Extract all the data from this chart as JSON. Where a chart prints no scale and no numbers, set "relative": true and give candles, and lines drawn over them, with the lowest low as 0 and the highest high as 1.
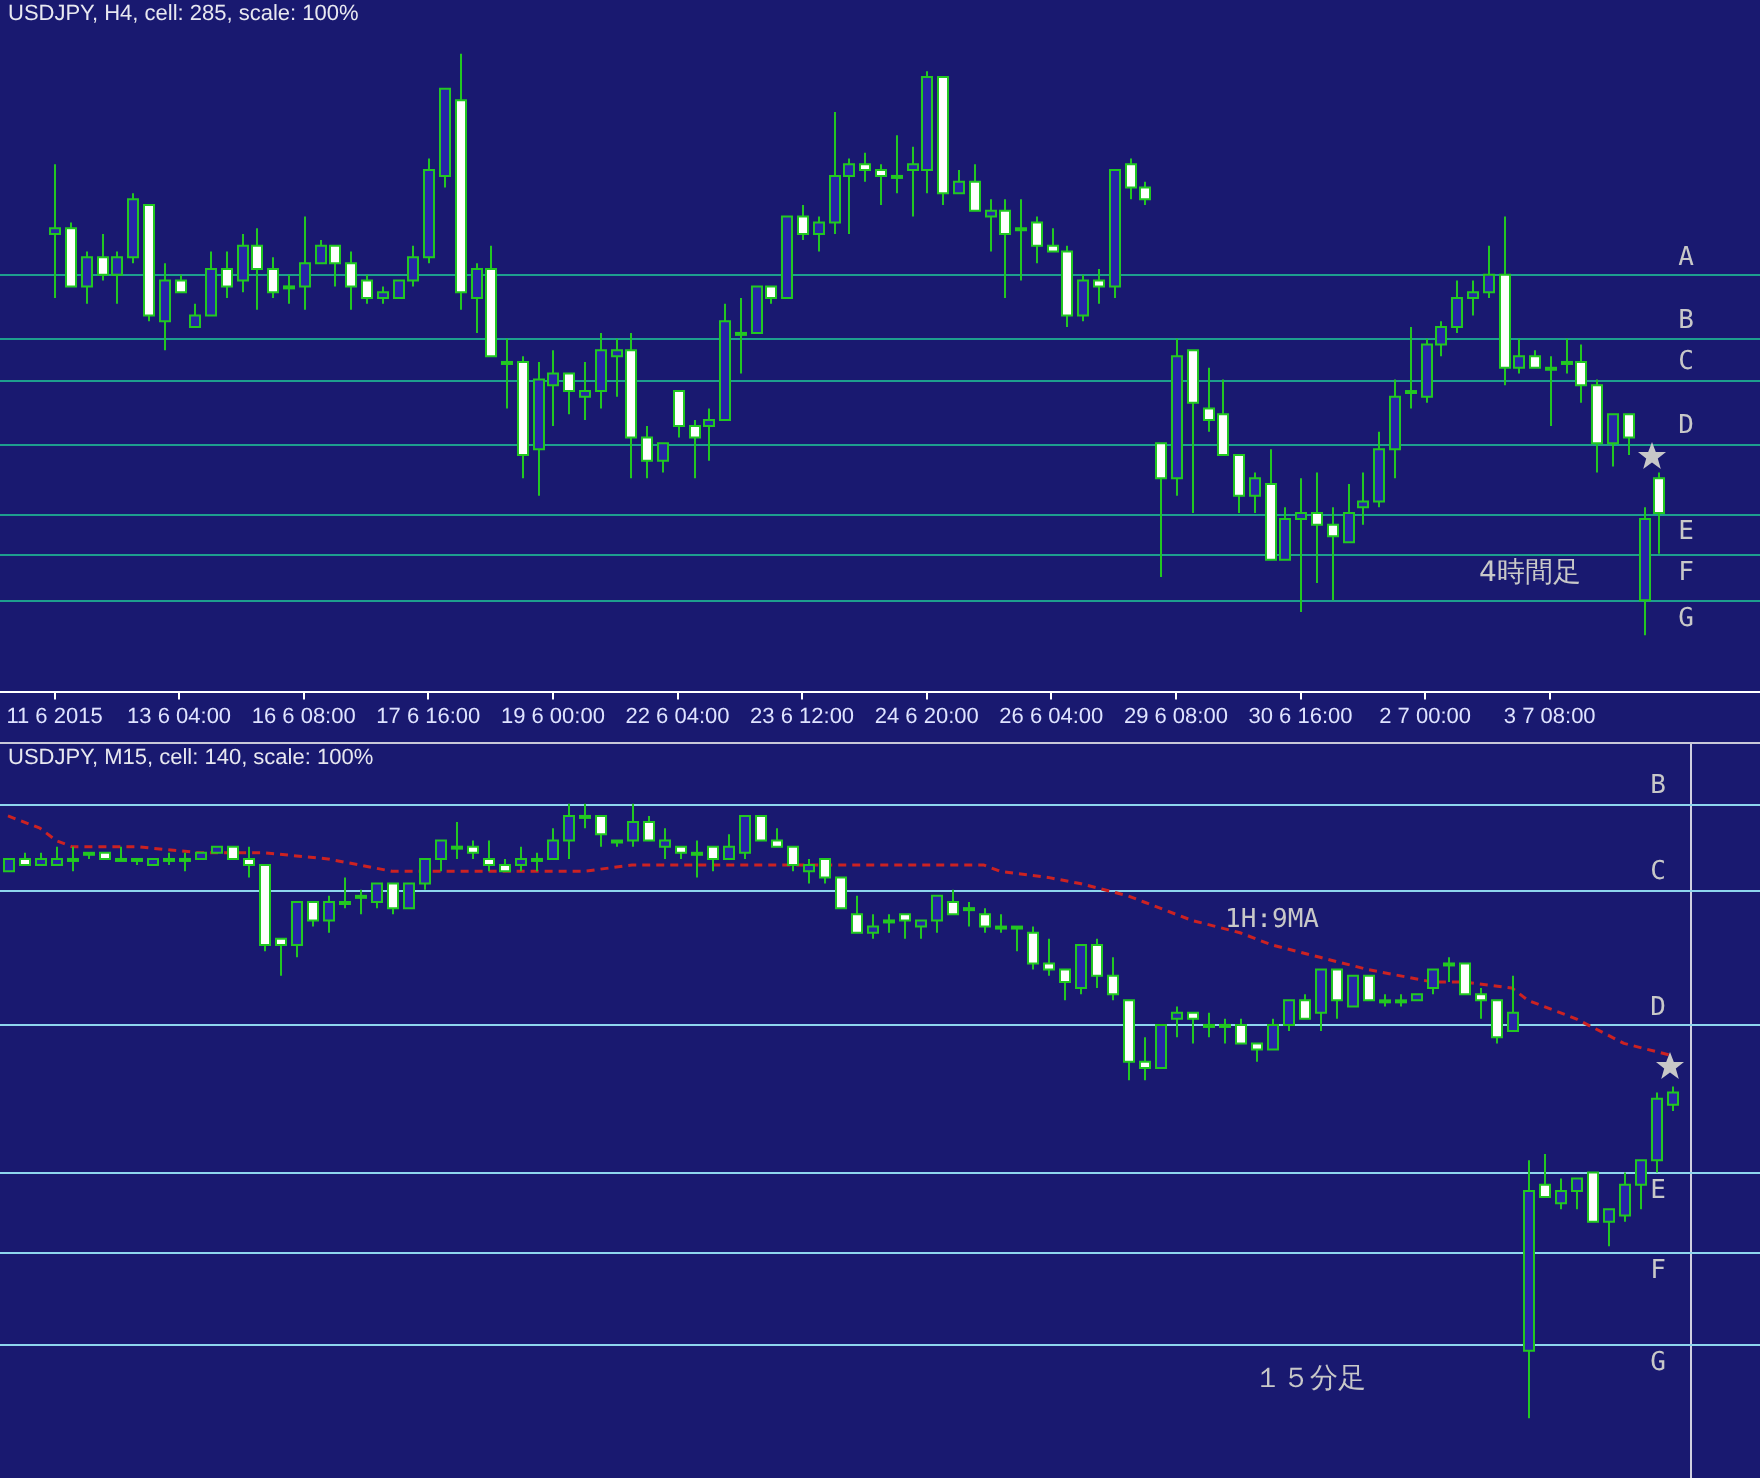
{
  "chart_data": [
    {
      "type": "candlestick",
      "title": "USDJPY, H4, cell: 285, scale: 100%",
      "relative": true,
      "tick_labels": "x",
      "colors": [
        "#2626a6",
        "#ffffff",
        "#2626a6",
        "#ffffff",
        "#2626a6",
        "#2626a6",
        "#ffffff",
        "#2626a6",
        "#ffffff",
        "#2626a6",
        "#2626a6",
        "#ffffff",
        "#2626a6",
        "#ffffff",
        "#ffffff",
        "#2626a6",
        "#2626a6",
        "#2626a6",
        "#ffffff",
        "#ffffff",
        "#ffffff",
        "#2626a6",
        "#2626a6",
        "#2626a6",
        "#2626a6",
        "#2626a6",
        "#ffffff",
        "#2626a6",
        "#ffffff",
        "#2626a6",
        "#ffffff",
        "#2626a6",
        "#2626a6",
        "#ffffff",
        "#2626a6",
        "#2626a6",
        "#2626a6",
        "#ffffff",
        "#ffffff",
        "#2626a6",
        "#ffffff",
        "#ffffff",
        "#2626a6",
        "#2626a6",
        "#2626a6",
        "#2626a6",
        "#ffffff",
        "#2626a6",
        "#ffffff",
        "#2626a6",
        "#2626a6",
        "#2626a6",
        "#ffffff",
        "#ffffff",
        "#2626a6",
        "#2626a6",
        "#2626a6",
        "#ffffff",
        "#2626a6",
        "#ffffff",
        "#2626a6",
        "#ffffff",
        "#2626a6",
        "#ffffff",
        "#ffffff",
        "#ffffff",
        "#2626a6",
        "#ffffff",
        "#2626a6",
        "#ffffff",
        "#ffffff",
        "#ffffff",
        "#2626a6",
        "#ffffff",
        "#ffffff",
        "#ffffff",
        "#ffffff",
        "#2626a6",
        "#ffffff",
        "#2626a6",
        "#2626a6",
        "#ffffff",
        "#ffffff",
        "#2626a6",
        "#2626a6",
        "#2626a6",
        "#2626a6",
        "#2626a6",
        "#2626a6",
        "#2626a6",
        "#2626a6",
        "#2626a6",
        "#2626a6",
        "#ffffff",
        "#2626a6",
        "#ffffff",
        "#2626a6",
        "#2626a6",
        "#ffffff",
        "#ffffff",
        "#2626a6",
        "#ffffff",
        "#2626a6",
        "#ffffff"
      ],
      "categories": [
        "11 6 2015",
        null,
        null,
        null,
        null,
        null,
        null,
        null,
        "13 6 04:00",
        null,
        null,
        null,
        null,
        null,
        null,
        null,
        "16 6 08:00",
        null,
        null,
        null,
        null,
        null,
        null,
        null,
        "17 6 16:00",
        null,
        null,
        null,
        null,
        null,
        null,
        null,
        "19 6 00:00",
        null,
        null,
        null,
        null,
        null,
        null,
        null,
        "22 6 04:00",
        null,
        null,
        null,
        null,
        null,
        null,
        null,
        "23 6 12:00",
        null,
        null,
        null,
        null,
        null,
        null,
        null,
        "24 6 20:00",
        null,
        null,
        null,
        null,
        null,
        null,
        null,
        "26 6 04:00",
        null,
        null,
        null,
        null,
        null,
        null,
        null,
        "29 6 08:00",
        null,
        null,
        null,
        null,
        null,
        null,
        null,
        "30 6 16:00",
        null,
        null,
        null,
        null,
        null,
        null,
        null,
        "2 7 00:00",
        null,
        null,
        null,
        null,
        null,
        null,
        null,
        "3 7 08:00",
        null,
        null,
        null,
        null,
        null,
        null,
        null
      ],
      "ohlc": [
        [
          0.69,
          0.81,
          0.58,
          0.7
        ],
        [
          0.7,
          0.71,
          0.6,
          0.6
        ],
        [
          0.6,
          0.66,
          0.57,
          0.65
        ],
        [
          0.65,
          0.69,
          0.61,
          0.62
        ],
        [
          0.62,
          0.66,
          0.57,
          0.65
        ],
        [
          0.65,
          0.76,
          0.64,
          0.75
        ],
        [
          0.74,
          0.74,
          0.54,
          0.55
        ],
        [
          0.54,
          0.64,
          0.49,
          0.61
        ],
        [
          0.61,
          0.62,
          0.59,
          0.59
        ],
        [
          0.53,
          0.57,
          0.53,
          0.55
        ],
        [
          0.55,
          0.66,
          0.55,
          0.63
        ],
        [
          0.63,
          0.66,
          0.58,
          0.6
        ],
        [
          0.61,
          0.69,
          0.59,
          0.67
        ],
        [
          0.67,
          0.7,
          0.56,
          0.63
        ],
        [
          0.63,
          0.65,
          0.58,
          0.59
        ],
        [
          0.6,
          0.62,
          0.57,
          0.6
        ],
        [
          0.6,
          0.72,
          0.56,
          0.64
        ],
        [
          0.64,
          0.68,
          0.64,
          0.67
        ],
        [
          0.67,
          0.67,
          0.6,
          0.64
        ],
        [
          0.64,
          0.66,
          0.56,
          0.6
        ],
        [
          0.61,
          0.62,
          0.57,
          0.58
        ],
        [
          0.58,
          0.6,
          0.57,
          0.59
        ],
        [
          0.58,
          0.61,
          0.58,
          0.61
        ],
        [
          0.61,
          0.67,
          0.6,
          0.65
        ],
        [
          0.65,
          0.82,
          0.64,
          0.8
        ],
        [
          0.79,
          0.94,
          0.77,
          0.94
        ],
        [
          0.92,
          1,
          0.56,
          0.59
        ],
        [
          0.58,
          0.64,
          0.52,
          0.63
        ],
        [
          0.63,
          0.67,
          0.48,
          0.48
        ],
        [
          0.47,
          0.51,
          0.39,
          0.47
        ],
        [
          0.47,
          0.48,
          0.27,
          0.31
        ],
        [
          0.32,
          0.47,
          0.24,
          0.44
        ],
        [
          0.43,
          0.49,
          0.36,
          0.45
        ],
        [
          0.45,
          0.45,
          0.38,
          0.42
        ],
        [
          0.41,
          0.47,
          0.37,
          0.42
        ],
        [
          0.42,
          0.52,
          0.39,
          0.49
        ],
        [
          0.48,
          0.51,
          0.41,
          0.49
        ],
        [
          0.49,
          0.52,
          0.27,
          0.34
        ],
        [
          0.34,
          0.36,
          0.27,
          0.3
        ],
        [
          0.3,
          0.33,
          0.28,
          0.33
        ],
        [
          0.42,
          0.42,
          0.34,
          0.36
        ],
        [
          0.36,
          0.37,
          0.27,
          0.34
        ],
        [
          0.36,
          0.39,
          0.3,
          0.37
        ],
        [
          0.37,
          0.57,
          0.37,
          0.54
        ],
        [
          0.52,
          0.58,
          0.45,
          0.52
        ],
        [
          0.52,
          0.6,
          0.52,
          0.6
        ],
        [
          0.6,
          0.6,
          0.57,
          0.58
        ],
        [
          0.58,
          0.72,
          0.58,
          0.72
        ],
        [
          0.72,
          0.74,
          0.68,
          0.69
        ],
        [
          0.69,
          0.72,
          0.66,
          0.71
        ],
        [
          0.71,
          0.9,
          0.69,
          0.79
        ],
        [
          0.79,
          0.82,
          0.69,
          0.81
        ],
        [
          0.81,
          0.83,
          0.78,
          0.8
        ],
        [
          0.8,
          0.81,
          0.74,
          0.79
        ],
        [
          0.79,
          0.86,
          0.76,
          0.79
        ],
        [
          0.8,
          0.84,
          0.72,
          0.81
        ],
        [
          0.8,
          0.97,
          0.76,
          0.96
        ],
        [
          0.96,
          0.96,
          0.74,
          0.76
        ],
        [
          0.76,
          0.8,
          0.76,
          0.78
        ],
        [
          0.78,
          0.81,
          0.73,
          0.73
        ],
        [
          0.72,
          0.75,
          0.66,
          0.73
        ],
        [
          0.73,
          0.75,
          0.58,
          0.69
        ],
        [
          0.7,
          0.75,
          0.61,
          0.7
        ],
        [
          0.71,
          0.72,
          0.64,
          0.67
        ],
        [
          0.67,
          0.7,
          0.66,
          0.66
        ],
        [
          0.66,
          0.67,
          0.53,
          0.55
        ],
        [
          0.55,
          0.62,
          0.54,
          0.61
        ],
        [
          0.61,
          0.63,
          0.57,
          0.6
        ],
        [
          0.6,
          0.8,
          0.58,
          0.8
        ],
        [
          0.81,
          0.82,
          0.75,
          0.77
        ],
        [
          0.77,
          0.78,
          0.74,
          0.75
        ],
        [
          0.33,
          0.33,
          0.1,
          0.27
        ],
        [
          0.27,
          0.51,
          0.24,
          0.48
        ],
        [
          0.49,
          0.49,
          0.21,
          0.4
        ],
        [
          0.39,
          0.46,
          0.35,
          0.37
        ],
        [
          0.38,
          0.44,
          0.31,
          0.31
        ],
        [
          0.31,
          0.31,
          0.21,
          0.24
        ],
        [
          0.24,
          0.28,
          0.21,
          0.27
        ],
        [
          0.26,
          0.32,
          0.13,
          0.13
        ],
        [
          0.13,
          0.22,
          0.13,
          0.2
        ],
        [
          0.2,
          0.27,
          0.04,
          0.21
        ],
        [
          0.21,
          0.28,
          0.09,
          0.19
        ],
        [
          0.19,
          0.22,
          0.06,
          0.17
        ],
        [
          0.16,
          0.26,
          0.16,
          0.21
        ],
        [
          0.22,
          0.28,
          0.19,
          0.23
        ],
        [
          0.23,
          0.35,
          0.22,
          0.32
        ],
        [
          0.32,
          0.44,
          0.27,
          0.41
        ],
        [
          0.42,
          0.53,
          0.39,
          0.42
        ],
        [
          0.41,
          0.51,
          0.4,
          0.5
        ],
        [
          0.5,
          0.54,
          0.48,
          0.53
        ],
        [
          0.53,
          0.61,
          0.52,
          0.58
        ],
        [
          0.58,
          0.61,
          0.55,
          0.59
        ],
        [
          0.59,
          0.67,
          0.58,
          0.62
        ],
        [
          0.62,
          0.72,
          0.43,
          0.46
        ],
        [
          0.46,
          0.51,
          0.45,
          0.48
        ],
        [
          0.48,
          0.49,
          0.46,
          0.46
        ],
        [
          0.46,
          0.48,
          0.36,
          0.46
        ],
        [
          0.47,
          0.51,
          0.45,
          0.47
        ],
        [
          0.47,
          0.5,
          0.4,
          0.43
        ],
        [
          0.43,
          0.44,
          0.28,
          0.33
        ],
        [
          0.33,
          0.38,
          0.29,
          0.38
        ],
        [
          0.38,
          0.38,
          0.31,
          0.34
        ],
        [
          0.06,
          0.22,
          0,
          0.2
        ],
        [
          0.27,
          0.28,
          0.14,
          0.21
        ]
      ],
      "ref_lines": [
        {
          "axis": "y",
          "value": 0.62,
          "label": "A",
          "color": "#1e9e8e"
        },
        {
          "axis": "y",
          "value": 0.51,
          "label": "B",
          "color": "#1e9e8e"
        },
        {
          "axis": "y",
          "value": 0.44,
          "label": "C",
          "color": "#1e9e8e"
        },
        {
          "axis": "y",
          "value": 0.33,
          "label": "D",
          "color": "#1e9e8e"
        },
        {
          "axis": "y",
          "value": 0.21,
          "label": "E",
          "color": "#1e9e8e"
        },
        {
          "axis": "y",
          "value": 0.14,
          "label": "F",
          "color": "#1e9e8e"
        },
        {
          "axis": "y",
          "value": 0.06,
          "label": "G",
          "color": "#1e9e8e"
        }
      ],
      "annotations": [
        "4時間足"
      ]
    },
    {
      "type": "candlestick",
      "title": "USDJPY, M15, cell: 140, scale: 100%",
      "relative": true,
      "tick_labels": false,
      "colors": [
        "#2626a6",
        "#ffffff",
        "#2626a6",
        "#2626a6",
        "#2626a6",
        "#2626a6",
        "#ffffff",
        "#2626a6",
        "#ffffff",
        "#2626a6",
        "#ffffff",
        "#2626a6",
        "#2626a6",
        "#2626a6",
        "#ffffff",
        "#ffffff",
        "#ffffff",
        "#ffffff",
        "#2626a6",
        "#ffffff",
        "#2626a6",
        "#2626a6",
        "#2626a6",
        "#2626a6",
        "#ffffff",
        "#2626a6",
        "#2626a6",
        "#2626a6",
        "#2626a6",
        "#ffffff",
        "#ffffff",
        "#ffffff",
        "#2626a6",
        "#2626a6",
        "#2626a6",
        "#2626a6",
        "#ffffff",
        "#ffffff",
        "#ffffff",
        "#2626a6",
        "#ffffff",
        "#2626a6",
        "#ffffff",
        "#2626a6",
        "#ffffff",
        "#2626a6",
        "#2626a6",
        "#ffffff",
        "#ffffff",
        "#ffffff",
        "#2626a6",
        "#ffffff",
        "#ffffff",
        "#ffffff",
        "#2626a6",
        "#2626a6",
        "#ffffff",
        "#2626a6",
        "#2626a6",
        "#ffffff",
        "#2626a6",
        "#ffffff",
        "#2626a6",
        "#2626a6",
        "#ffffff",
        "#ffffff",
        "#ffffff",
        "#2626a6",
        "#ffffff",
        "#ffffff",
        "#ffffff",
        "#ffffff",
        "#2626a6",
        "#2626a6",
        "#ffffff",
        "#2626a6",
        "#2626a6",
        "#ffffff",
        "#ffffff",
        "#2626a6",
        "#2626a6",
        "#ffffff",
        "#2626a6",
        "#ffffff",
        "#2626a6",
        "#ffffff",
        "#ffffff",
        "#2626a6",
        "#2626a6",
        "#2626a6",
        "#2626a6",
        "#ffffff",
        "#ffffff",
        "#ffffff",
        "#2626a6",
        "#2626a6",
        "#ffffff",
        "#2626a6",
        "#2626a6",
        "#ffffff",
        "#2626a6",
        "#2626a6",
        "#2626a6",
        "#2626a6",
        "#2626a6"
      ],
      "categories": [
        null,
        null,
        null,
        null,
        null,
        null,
        null,
        null,
        null,
        null,
        null,
        null,
        null,
        null,
        null,
        null,
        null,
        null,
        null,
        null,
        null,
        null,
        null,
        null,
        null,
        null,
        null,
        null,
        null,
        null,
        null,
        null,
        null,
        null,
        null,
        null,
        null,
        null,
        null,
        null,
        null,
        null,
        null,
        null,
        null,
        null,
        null,
        null,
        null,
        null,
        null,
        null,
        null,
        null,
        null,
        null,
        null,
        null,
        null,
        null,
        null,
        null,
        null,
        null,
        null,
        null,
        null,
        null,
        null,
        null,
        null,
        null,
        null,
        null,
        null,
        null,
        null,
        null,
        null,
        null,
        null,
        null,
        null,
        null,
        null,
        null,
        null,
        null,
        null,
        null,
        null,
        null,
        null,
        null,
        null,
        null,
        null,
        null,
        null,
        null,
        null,
        null,
        null,
        null,
        null
      ],
      "ohlc": [
        [
          0.89,
          0.91,
          0.89,
          0.91
        ],
        [
          0.91,
          0.92,
          0.9,
          0.9
        ],
        [
          0.9,
          0.92,
          0.9,
          0.91
        ],
        [
          0.9,
          0.93,
          0.9,
          0.91
        ],
        [
          0.91,
          0.93,
          0.89,
          0.91
        ],
        [
          0.92,
          0.92,
          0.91,
          0.92
        ],
        [
          0.92,
          0.92,
          0.91,
          0.91
        ],
        [
          0.91,
          0.93,
          0.91,
          0.91
        ],
        [
          0.91,
          0.91,
          0.9,
          0.91
        ],
        [
          0.9,
          0.91,
          0.9,
          0.91
        ],
        [
          0.91,
          0.92,
          0.9,
          0.91
        ],
        [
          0.91,
          0.92,
          0.89,
          0.91
        ],
        [
          0.91,
          0.92,
          0.91,
          0.92
        ],
        [
          0.92,
          0.93,
          0.92,
          0.93
        ],
        [
          0.93,
          0.93,
          0.91,
          0.91
        ],
        [
          0.91,
          0.93,
          0.88,
          0.9
        ],
        [
          0.9,
          0.9,
          0.76,
          0.77
        ],
        [
          0.78,
          0.78,
          0.72,
          0.77
        ],
        [
          0.77,
          0.84,
          0.75,
          0.84
        ],
        [
          0.84,
          0.84,
          0.8,
          0.81
        ],
        [
          0.81,
          0.85,
          0.79,
          0.84
        ],
        [
          0.84,
          0.88,
          0.83,
          0.84
        ],
        [
          0.85,
          0.86,
          0.82,
          0.85
        ],
        [
          0.84,
          0.87,
          0.83,
          0.87
        ],
        [
          0.87,
          0.87,
          0.82,
          0.83
        ],
        [
          0.83,
          0.87,
          0.83,
          0.87
        ],
        [
          0.87,
          0.91,
          0.86,
          0.91
        ],
        [
          0.91,
          0.94,
          0.89,
          0.94
        ],
        [
          0.93,
          0.97,
          0.91,
          0.93
        ],
        [
          0.93,
          0.94,
          0.91,
          0.92
        ],
        [
          0.91,
          0.94,
          0.89,
          0.9
        ],
        [
          0.9,
          0.91,
          0.89,
          0.89
        ],
        [
          0.9,
          0.93,
          0.89,
          0.91
        ],
        [
          0.91,
          0.92,
          0.89,
          0.91
        ],
        [
          0.91,
          0.96,
          0.91,
          0.94
        ],
        [
          0.94,
          1,
          0.91,
          0.98
        ],
        [
          0.98,
          1,
          0.96,
          0.98
        ],
        [
          0.98,
          0.98,
          0.93,
          0.95
        ],
        [
          0.94,
          0.94,
          0.93,
          0.94
        ],
        [
          0.94,
          1,
          0.93,
          0.97
        ],
        [
          0.97,
          0.98,
          0.94,
          0.94
        ],
        [
          0.93,
          0.96,
          0.91,
          0.94
        ],
        [
          0.93,
          0.93,
          0.91,
          0.92
        ],
        [
          0.92,
          0.94,
          0.88,
          0.92
        ],
        [
          0.93,
          0.93,
          0.89,
          0.91
        ],
        [
          0.91,
          0.95,
          0.91,
          0.93
        ],
        [
          0.92,
          0.98,
          0.91,
          0.98
        ],
        [
          0.98,
          0.98,
          0.94,
          0.94
        ],
        [
          0.94,
          0.96,
          0.93,
          0.93
        ],
        [
          0.93,
          0.93,
          0.89,
          0.9
        ],
        [
          0.89,
          0.91,
          0.87,
          0.9
        ],
        [
          0.91,
          0.91,
          0.87,
          0.88
        ],
        [
          0.88,
          0.88,
          0.83,
          0.83
        ],
        [
          0.82,
          0.85,
          0.79,
          0.79
        ],
        [
          0.79,
          0.82,
          0.78,
          0.8
        ],
        [
          0.81,
          0.82,
          0.79,
          0.81
        ],
        [
          0.82,
          0.82,
          0.78,
          0.81
        ],
        [
          0.8,
          0.81,
          0.78,
          0.81
        ],
        [
          0.81,
          0.85,
          0.79,
          0.85
        ],
        [
          0.84,
          0.86,
          0.82,
          0.82
        ],
        [
          0.83,
          0.84,
          0.8,
          0.83
        ],
        [
          0.82,
          0.83,
          0.79,
          0.8
        ],
        [
          0.8,
          0.82,
          0.79,
          0.8
        ],
        [
          0.8,
          0.8,
          0.76,
          0.8
        ],
        [
          0.79,
          0.8,
          0.73,
          0.74
        ],
        [
          0.74,
          0.78,
          0.72,
          0.73
        ],
        [
          0.73,
          0.73,
          0.68,
          0.71
        ],
        [
          0.7,
          0.77,
          0.69,
          0.77
        ],
        [
          0.77,
          0.78,
          0.7,
          0.72
        ],
        [
          0.72,
          0.75,
          0.68,
          0.69
        ],
        [
          0.68,
          0.68,
          0.55,
          0.58
        ],
        [
          0.58,
          0.62,
          0.55,
          0.57
        ],
        [
          0.57,
          0.64,
          0.57,
          0.64
        ],
        [
          0.65,
          0.67,
          0.62,
          0.66
        ],
        [
          0.66,
          0.66,
          0.61,
          0.65
        ],
        [
          0.64,
          0.66,
          0.62,
          0.64
        ],
        [
          0.64,
          0.65,
          0.61,
          0.64
        ],
        [
          0.64,
          0.65,
          0.61,
          0.61
        ],
        [
          0.61,
          0.61,
          0.58,
          0.6
        ],
        [
          0.6,
          0.65,
          0.6,
          0.64
        ],
        [
          0.64,
          0.68,
          0.63,
          0.68
        ],
        [
          0.68,
          0.69,
          0.65,
          0.65
        ],
        [
          0.66,
          0.73,
          0.63,
          0.73
        ],
        [
          0.73,
          0.73,
          0.65,
          0.68
        ],
        [
          0.67,
          0.72,
          0.67,
          0.72
        ],
        [
          0.72,
          0.72,
          0.68,
          0.68
        ],
        [
          0.68,
          0.69,
          0.67,
          0.68
        ],
        [
          0.68,
          0.69,
          0.67,
          0.68
        ],
        [
          0.68,
          0.69,
          0.68,
          0.69
        ],
        [
          0.7,
          0.73,
          0.69,
          0.73
        ],
        [
          0.74,
          0.75,
          0.71,
          0.74
        ],
        [
          0.74,
          0.74,
          0.69,
          0.69
        ],
        [
          0.69,
          0.7,
          0.65,
          0.68
        ],
        [
          0.68,
          0.68,
          0.61,
          0.62
        ],
        [
          0.63,
          0.72,
          0.63,
          0.66
        ],
        [
          0.11,
          0.42,
          0,
          0.37
        ],
        [
          0.38,
          0.43,
          0.36,
          0.36
        ],
        [
          0.35,
          0.39,
          0.34,
          0.37
        ],
        [
          0.37,
          0.39,
          0.34,
          0.39
        ],
        [
          0.4,
          0.4,
          0.32,
          0.32
        ],
        [
          0.32,
          0.34,
          0.28,
          0.34
        ],
        [
          0.33,
          0.4,
          0.32,
          0.38
        ],
        [
          0.38,
          0.42,
          0.34,
          0.42
        ],
        [
          0.42,
          0.53,
          0.4,
          0.52
        ],
        [
          0.51,
          0.54,
          0.5,
          0.53
        ]
      ],
      "series": [
        {
          "type": "line",
          "name": "1H:9MA",
          "color": "#cc2222",
          "line_style": "dashed",
          "values": [
            0.98,
            null,
            0.96,
            0.94,
            0.93,
            null,
            null,
            null,
            0.93,
            null,
            null,
            null,
            0.92,
            null,
            null,
            null,
            0.92,
            null,
            null,
            null,
            0.91,
            null,
            null,
            null,
            0.89,
            null,
            null,
            null,
            null,
            0.89,
            null,
            null,
            null,
            0.89,
            null,
            null,
            0.89,
            null,
            null,
            0.9,
            null,
            null,
            null,
            null,
            0.9,
            null,
            null,
            null,
            0.9,
            null,
            null,
            null,
            0.9,
            null,
            null,
            null,
            null,
            null,
            null,
            null,
            null,
            0.9,
            0.89,
            null,
            null,
            0.88,
            null,
            0.87,
            null,
            null,
            0.85,
            0.84,
            null,
            0.82,
            0.81,
            null,
            null,
            0.79,
            null,
            0.77,
            null,
            null,
            0.75,
            null,
            null,
            0.73,
            null,
            null,
            null,
            0.71,
            null,
            0.71,
            null,
            null,
            0.7,
            0.68,
            null,
            null,
            0.65,
            null,
            null,
            0.61,
            null,
            null,
            0.59
          ]
        }
      ],
      "ref_lines": [
        {
          "axis": "y",
          "value": 1.0,
          "label": "B",
          "color": "#8ed6ee"
        },
        {
          "axis": "y",
          "value": 0.86,
          "label": "C",
          "color": "#8ed6ee"
        },
        {
          "axis": "y",
          "value": 0.64,
          "label": "D",
          "color": "#8ed6ee"
        },
        {
          "axis": "y",
          "value": 0.4,
          "label": "E",
          "color": "#8ed6ee"
        },
        {
          "axis": "y",
          "value": 0.27,
          "label": "F",
          "color": "#8ed6ee"
        },
        {
          "axis": "y",
          "value": 0.12,
          "label": "G",
          "color": "#8ed6ee"
        }
      ],
      "annotations": [
        "１５分足"
      ]
    }
  ]
}
